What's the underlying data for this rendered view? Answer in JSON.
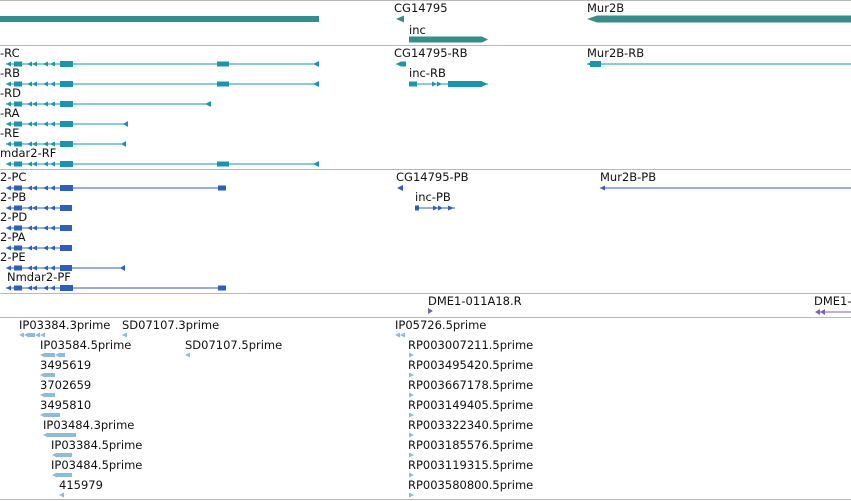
{
  "colors": {
    "gene": "#3a8c8c",
    "transcript_rna": "#1996ad",
    "transcript_protein": "#2d5fbd",
    "clone": "#7a62b2",
    "est": "#8cbcdc",
    "border": "#b9b9b9"
  },
  "gene_track": {
    "labels": {
      "cg14795": "CG14795",
      "inc": "inc",
      "mur2b": "Mur2B"
    }
  },
  "rna_track": {
    "labels": {
      "rc": "-RC",
      "rb": "-RB",
      "rd": "-RD",
      "ra": "-RA",
      "re": "-RE",
      "rf": "mdar2-RF",
      "cg14795_rb": "CG14795-RB",
      "inc_rb": "inc-RB",
      "mur2b_rb": "Mur2B-RB"
    }
  },
  "protein_track": {
    "labels": {
      "pc": "2-PC",
      "pb": "2-PB",
      "pd": "2-PD",
      "pa": "2-PA",
      "pe": "2-PE",
      "pf": "Nmdar2-PF",
      "cg14795_pb": "CG14795-PB",
      "inc_pb": "inc-PB",
      "mur2b_pb": "Mur2B-PB"
    }
  },
  "clone_track": {
    "labels": {
      "dme1_r": "DME1-011A18.R",
      "dme1_cut": "DME1-"
    }
  },
  "est_track": {
    "labels": [
      "IP03384.3prime",
      "SD07107.3prime",
      "IP03584.5prime",
      "SD07107.5prime",
      "3495619",
      "3702659",
      "3495810",
      "IP03484.3prime",
      "IP03384.5prime",
      "IP03484.5prime",
      "415979",
      "IP05726.5prime",
      "RP003007211.5prime",
      "RP003495420.5prime",
      "RP003667178.5prime",
      "RP003149405.5prime",
      "RP003322340.5prime",
      "RP003185576.5prime",
      "RP003119315.5prime",
      "RP003580800.5prime"
    ]
  }
}
